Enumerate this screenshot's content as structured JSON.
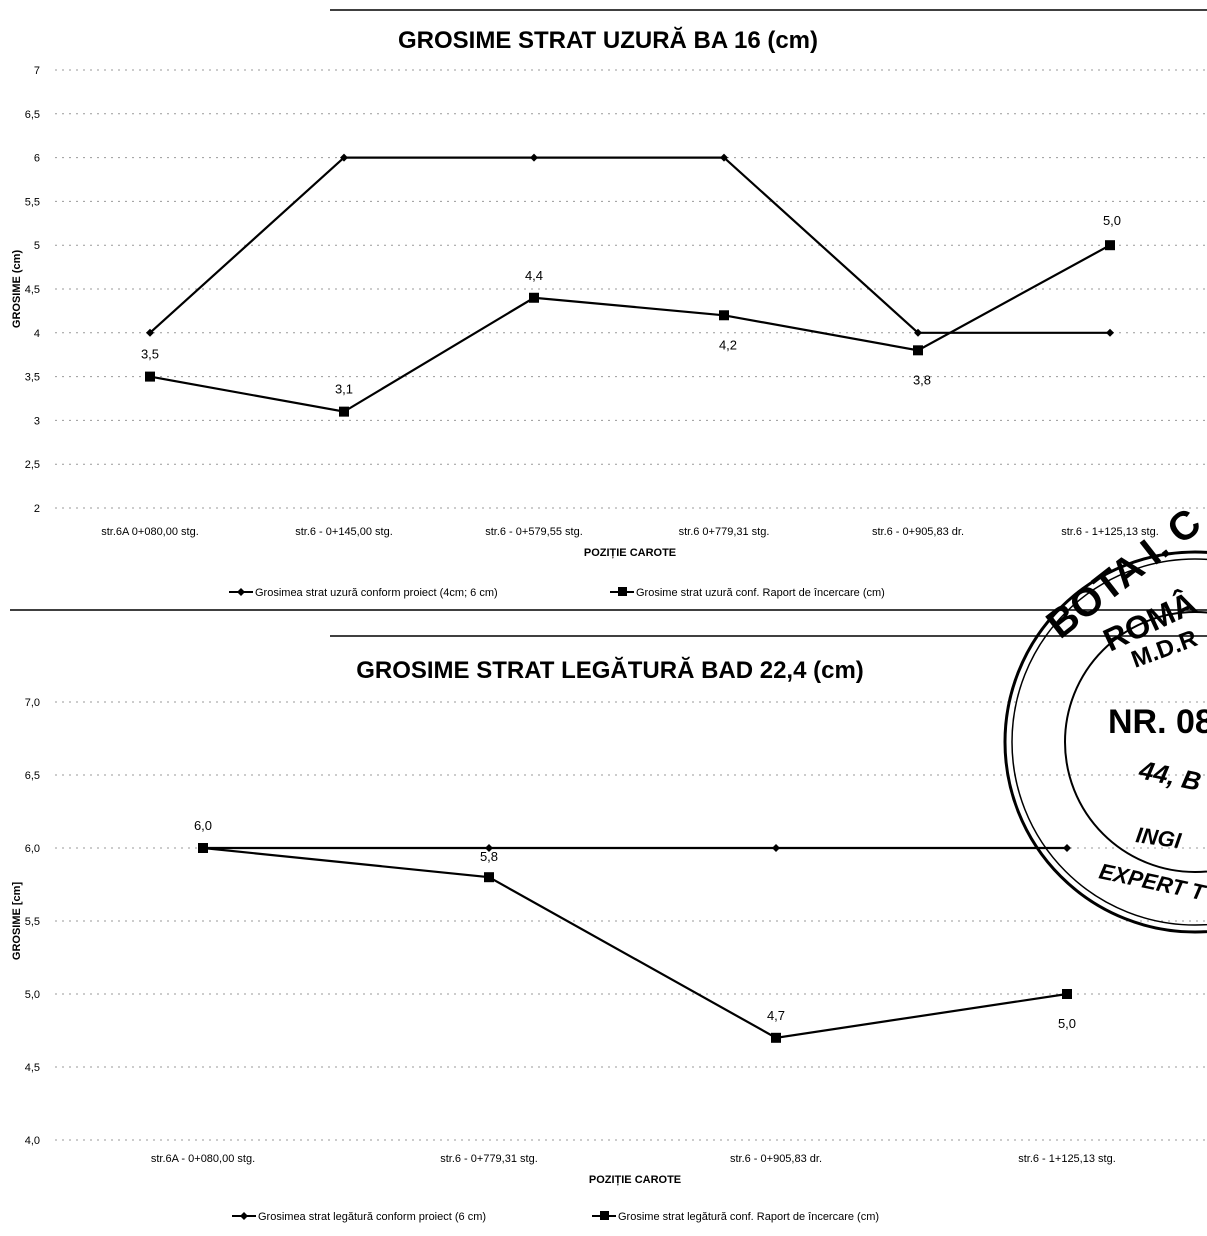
{
  "chart_data": [
    {
      "type": "line",
      "title": "GROSIME STRAT UZURĂ BA 16 (cm)",
      "xlabel": "POZIȚIE CAROTE",
      "ylabel": "GROSIME (cm)",
      "ylim": [
        2,
        7
      ],
      "yticks": [
        "7",
        "6,5",
        "6",
        "5,5",
        "5",
        "4,5",
        "4",
        "3,5",
        "3",
        "2,5",
        "2"
      ],
      "categories": [
        "str.6A 0+080,00 stg.",
        "str.6 - 0+145,00 stg.",
        "str.6 - 0+579,55 stg.",
        "str.6 0+779,31 stg.",
        "str.6 - 0+905,83 dr.",
        "str.6 - 1+125,13 stg."
      ],
      "series": [
        {
          "name": "Grosimea strat uzură conform proiect (4cm; 6 cm)",
          "marker": "diamond",
          "values": [
            4,
            6,
            6,
            6,
            4,
            4
          ]
        },
        {
          "name": "Grosime strat uzură conf. Raport de încercare (cm)",
          "marker": "square",
          "values": [
            3.5,
            3.1,
            4.4,
            4.2,
            3.8,
            5.0
          ],
          "labels": [
            "3,5",
            "3,1",
            "4,4",
            "4,2",
            "3,8",
            "5,0"
          ]
        }
      ],
      "grid": true,
      "legend": "bottom"
    },
    {
      "type": "line",
      "title": "GROSIME STRAT LEGĂTURĂ BAD 22,4 (cm)",
      "xlabel": "POZIȚIE CAROTE",
      "ylabel": "GROSIME [cm]",
      "ylim": [
        4,
        7
      ],
      "yticks": [
        "7,0",
        "6,5",
        "6,0",
        "5,5",
        "5,0",
        "4,5",
        "4,0"
      ],
      "categories": [
        "str.6A - 0+080,00 stg.",
        "str.6 - 0+779,31 stg.",
        "str.6 - 0+905,83 dr.",
        "str.6 - 1+125,13 stg."
      ],
      "series": [
        {
          "name": "Grosimea strat legătură conform proiect (6 cm)",
          "marker": "diamond",
          "values": [
            6,
            6,
            6,
            6
          ]
        },
        {
          "name": "Grosime strat legătură conf. Raport de încercare (cm)",
          "marker": "square",
          "values": [
            6.0,
            5.8,
            4.7,
            5.0
          ],
          "labels": [
            "6,0",
            "5,8",
            "4,7",
            "5,0"
          ]
        }
      ],
      "grid": true,
      "legend": "bottom"
    }
  ],
  "stamp": {
    "line1": "BOTA I. C",
    "line2": "ROMÂ",
    "line3": "M.D.R",
    "line4": "NR. 08",
    "line5": "44, B",
    "line6": "INGI",
    "line7": "EXPERT T"
  },
  "colors": {
    "line": "#000000",
    "grid": "#9a9a9a"
  }
}
